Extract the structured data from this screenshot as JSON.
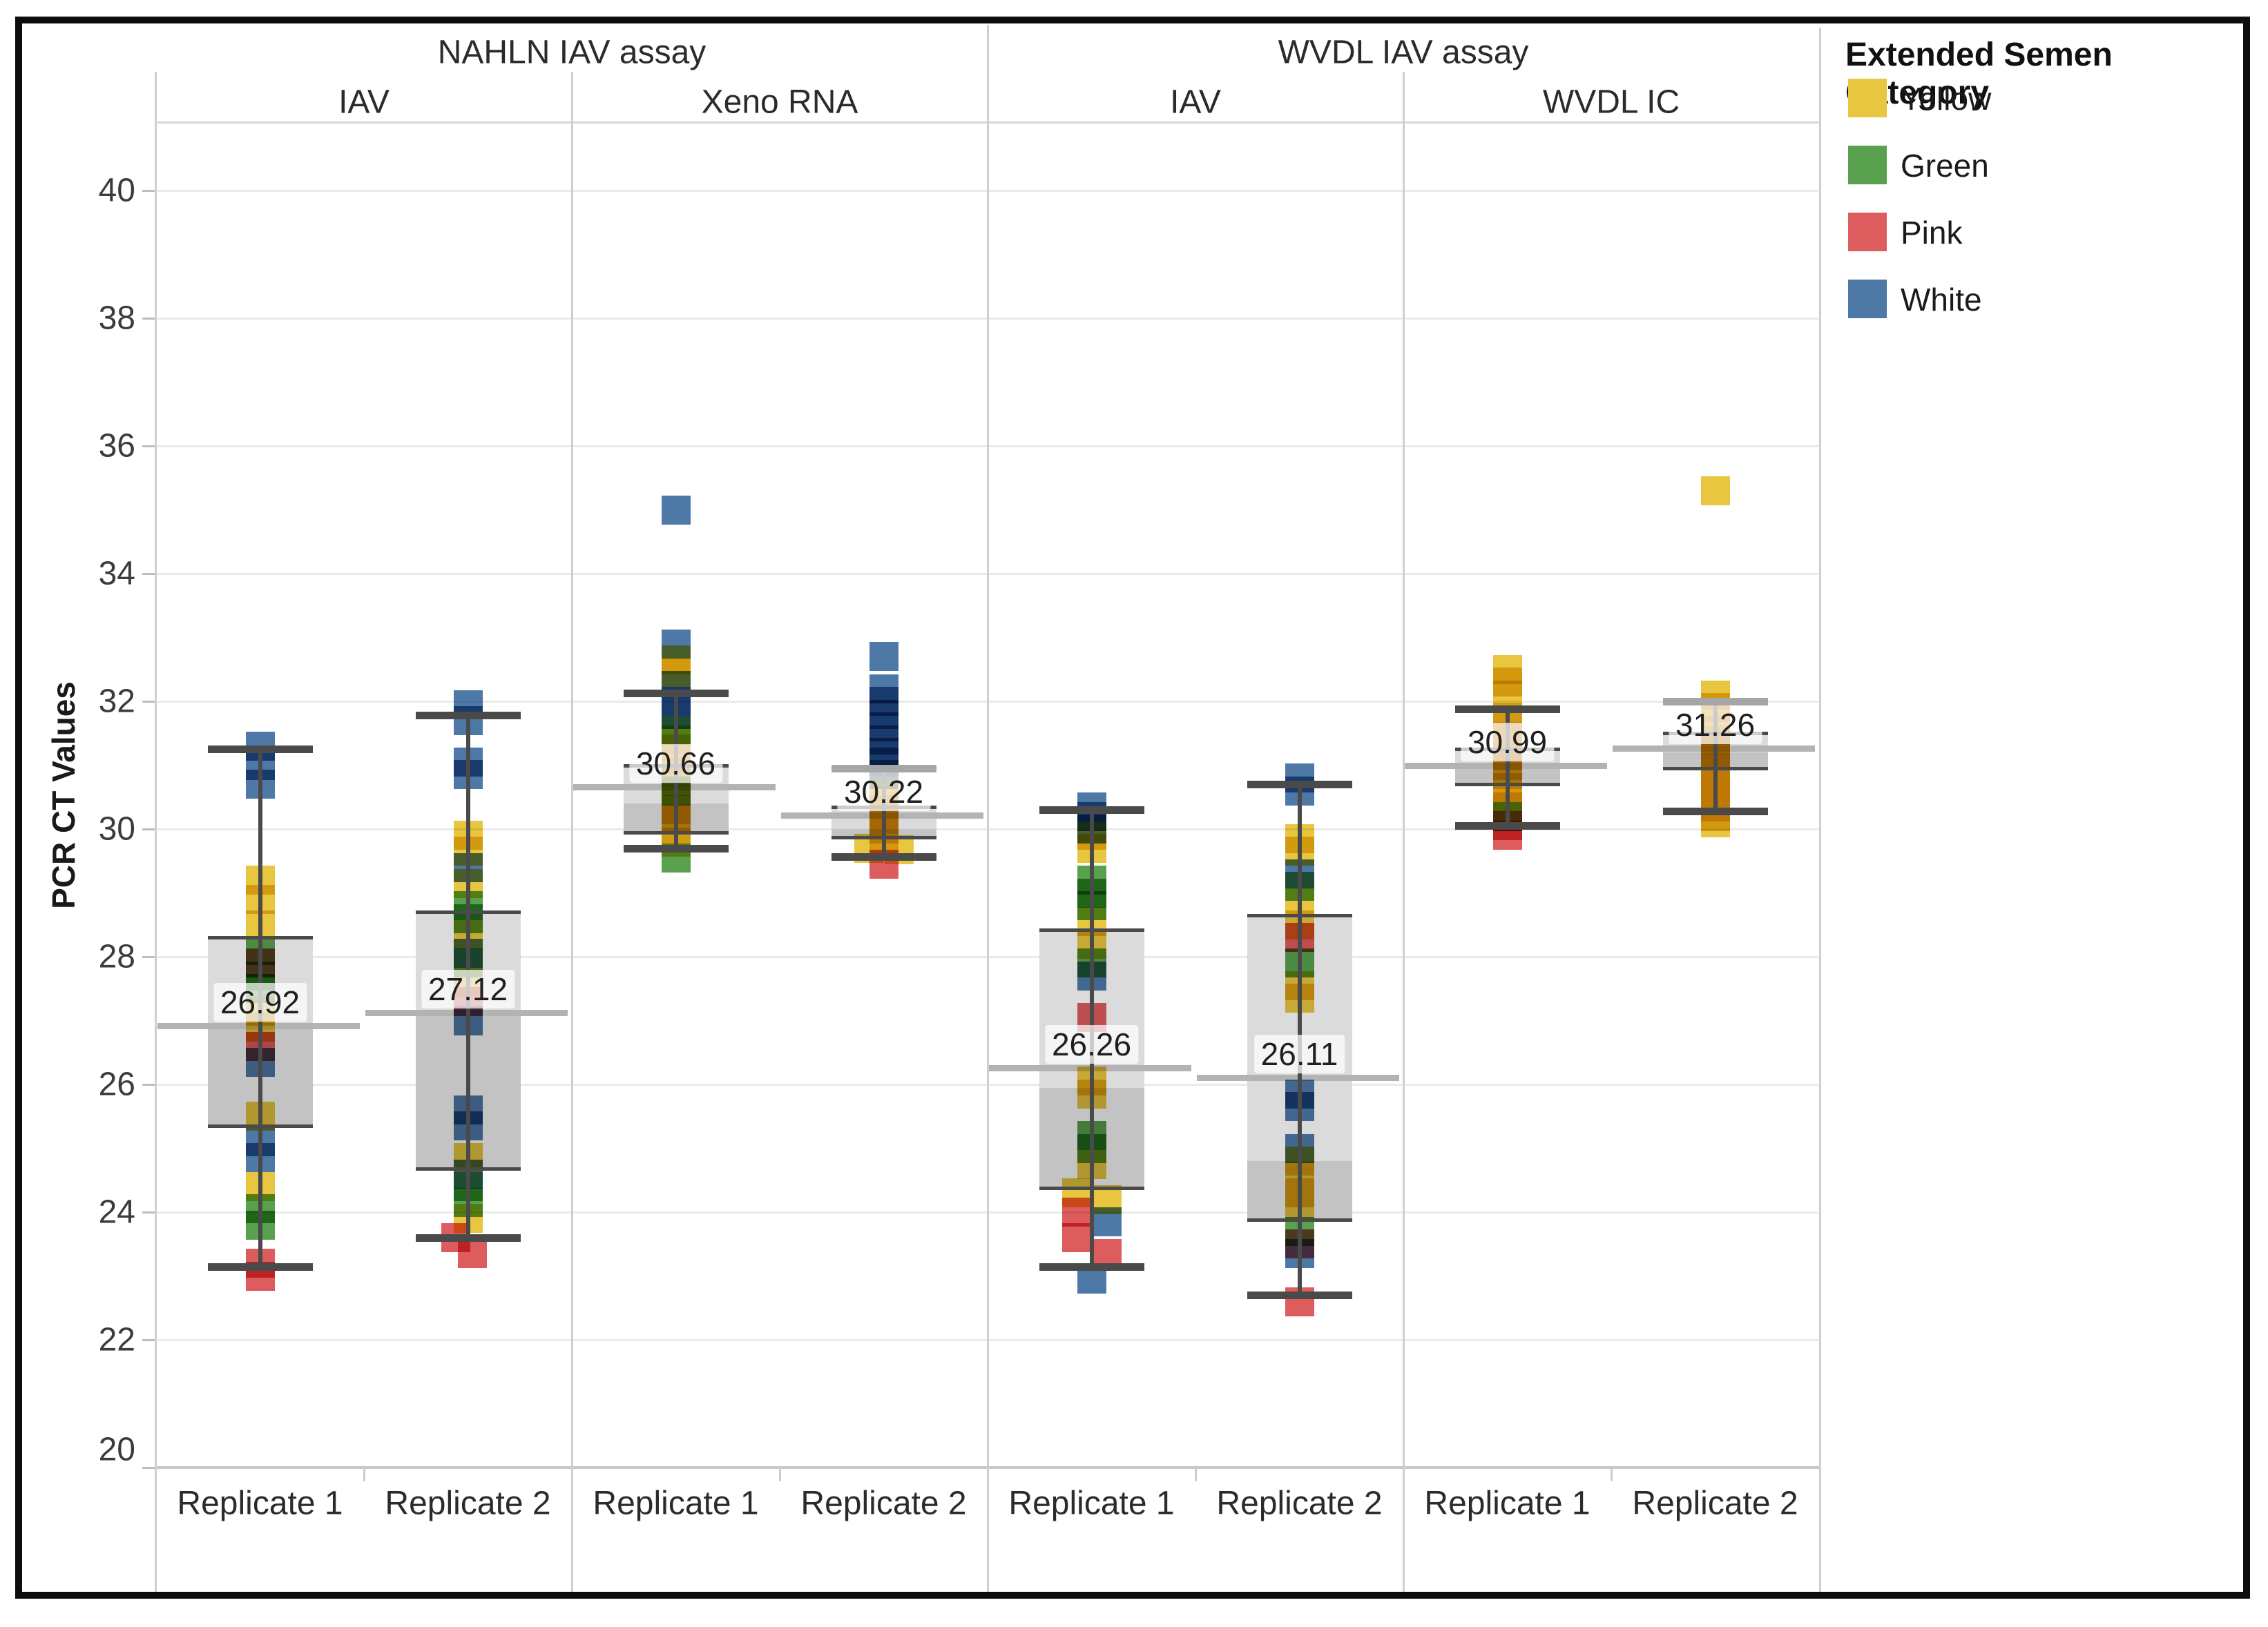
{
  "chart_data": {
    "type": "boxplot",
    "title": "",
    "ylabel": "PCR CT Values",
    "y_axis": {
      "min": 20,
      "max": 41,
      "tick_step": 2,
      "ticks": [
        20,
        22,
        24,
        26,
        28,
        30,
        32,
        34,
        36,
        38,
        40
      ]
    },
    "grid": "horizontal-light",
    "legend_position": "top-right",
    "legend": {
      "title": "Extended Semen Category",
      "items": [
        {
          "label": "Yellow",
          "color": "#E8C63F"
        },
        {
          "label": "Green",
          "color": "#59A14F"
        },
        {
          "label": "Pink",
          "color": "#DD5C5E"
        },
        {
          "label": "White",
          "color": "#4E79A7"
        }
      ]
    },
    "category_key": {
      "Y": "Yellow",
      "G": "Green",
      "P": "Pink",
      "W": "White"
    },
    "colors": {
      "Yellow": "#E8C63F",
      "Green": "#59A14F",
      "Pink": "#DD5C5E",
      "White": "#4E79A7",
      "box_light": "#DBDBDB",
      "box_dark": "#C3C3C3",
      "box_edge": "#4A4A4A",
      "whisker": "#4A4A4A",
      "whisker_light": "#A6A6A6",
      "mean_line": "#B3B3B3",
      "gridline": "#EAEAEA",
      "divider": "#CFCFCF",
      "frame": "#0D0D0D"
    },
    "assay_groups": [
      {
        "label": "NAHLN IAV assay",
        "panes": [
          0,
          1
        ]
      },
      {
        "label": "WVDL IAV assay",
        "panes": [
          2,
          3
        ]
      }
    ],
    "panes": [
      {
        "label": "IAV",
        "replicates": [
          {
            "label": "Replicate 1",
            "mean": 26.92,
            "mean_label": "26.92",
            "whisker_high": 31.25,
            "q3": 28.3,
            "median": 26.9,
            "q1": 25.35,
            "whisker_low": 23.15,
            "points": [
              [
                "W",
                31.3
              ],
              [
                "W",
                31.0
              ],
              [
                "W",
                30.7
              ],
              [
                "Y",
                29.2
              ],
              [
                "Y",
                28.9
              ],
              [
                "Y",
                28.5
              ],
              [
                "G",
                28.1
              ],
              [
                "P",
                27.9
              ],
              [
                "G",
                27.7
              ],
              [
                "G",
                27.5
              ],
              [
                "Y",
                27.15
              ],
              [
                "Y",
                26.9
              ],
              [
                "P",
                26.6
              ],
              [
                "W",
                26.35
              ],
              [
                "Y",
                25.5
              ],
              [
                "W",
                25.1
              ],
              [
                "W",
                24.85
              ],
              [
                "Y",
                24.4
              ],
              [
                "G",
                24.05
              ],
              [
                "G",
                23.8
              ],
              [
                "P",
                23.2
              ],
              [
                "P",
                23.0
              ]
            ]
          },
          {
            "label": "Replicate 2",
            "mean": 27.12,
            "mean_label": "27.12",
            "whisker_high": 31.78,
            "q3": 28.7,
            "median": 27.1,
            "q1": 24.68,
            "whisker_low": 23.6,
            "points": [
              [
                "W",
                31.95
              ],
              [
                "W",
                31.7
              ],
              [
                "W",
                31.05
              ],
              [
                "W",
                30.85
              ],
              [
                "Y",
                29.9
              ],
              [
                "Y",
                29.65
              ],
              [
                "W",
                29.4
              ],
              [
                "Y",
                29.15
              ],
              [
                "G",
                28.8
              ],
              [
                "G",
                28.6
              ],
              [
                "Y",
                28.35
              ],
              [
                "W",
                28.05
              ],
              [
                "G",
                27.9
              ],
              [
                "Y",
                27.6
              ],
              [
                "P",
                27.3
              ],
              [
                "W",
                27.0
              ],
              [
                "W",
                25.6
              ],
              [
                "W",
                25.35
              ],
              [
                "Y",
                24.85
              ],
              [
                "W",
                24.6
              ],
              [
                "G",
                24.4
              ],
              [
                "G",
                24.15
              ],
              [
                "Y",
                23.9
              ],
              [
                "P",
                23.6,
                -18
              ],
              [
                "P",
                23.35,
                6
              ]
            ]
          }
        ]
      },
      {
        "label": "Xeno RNA",
        "replicates": [
          {
            "label": "Replicate 1",
            "mean": 30.66,
            "mean_label": "30.66",
            "whisker_high": 32.13,
            "q3": 31.0,
            "median": 30.4,
            "q1": 29.95,
            "whisker_low": 29.7,
            "points": [
              [
                "W",
                35.0
              ],
              [
                "W",
                32.9
              ],
              [
                "Y",
                32.65
              ],
              [
                "Y",
                32.45
              ],
              [
                "W",
                32.25
              ],
              [
                "W",
                32.0
              ],
              [
                "W",
                31.8
              ],
              [
                "G",
                31.55
              ],
              [
                "Y",
                31.4
              ],
              [
                "Y",
                31.25
              ],
              [
                "Y",
                31.1
              ],
              [
                "Y",
                30.9
              ],
              [
                "Y",
                30.75
              ],
              [
                "G",
                30.6
              ],
              [
                "Y",
                30.45
              ],
              [
                "Y",
                30.3
              ],
              [
                "Y",
                30.15
              ],
              [
                "Y",
                30.0
              ],
              [
                "Y",
                29.8
              ],
              [
                "G",
                29.55
              ]
            ]
          },
          {
            "label": "Replicate 2",
            "mean": 30.22,
            "mean_label": "30.22",
            "whisker_high": 30.95,
            "q3": 30.35,
            "median": 30.0,
            "q1": 29.87,
            "whisker_low": 29.57,
            "cap_top_light": true,
            "points": [
              [
                "W",
                32.7
              ],
              [
                "W",
                32.2
              ],
              [
                "W",
                32.0
              ],
              [
                "W",
                31.8
              ],
              [
                "W",
                31.6
              ],
              [
                "W",
                31.4
              ],
              [
                "W",
                31.2
              ],
              [
                "W",
                31.05
              ],
              [
                "W",
                30.85
              ],
              [
                "Y",
                30.6
              ],
              [
                "Y",
                30.45
              ],
              [
                "Y",
                30.3
              ],
              [
                "Y",
                30.15
              ],
              [
                "Y",
                30.0
              ],
              [
                "Y",
                29.85
              ],
              [
                "Y",
                29.7,
                -22
              ],
              [
                "Y",
                29.68,
                22
              ],
              [
                "P",
                29.45
              ]
            ]
          }
        ]
      },
      {
        "label": "IAV",
        "replicates": [
          {
            "label": "Replicate 1",
            "mean": 26.26,
            "mean_label": "26.26",
            "whisker_high": 30.3,
            "q3": 28.42,
            "median": 25.95,
            "q1": 24.38,
            "whisker_low": 23.15,
            "points": [
              [
                "W",
                30.35
              ],
              [
                "W",
                30.2
              ],
              [
                "W",
                30.0
              ],
              [
                "Y",
                29.9
              ],
              [
                "Y",
                29.7
              ],
              [
                "G",
                29.2
              ],
              [
                "G",
                29.0
              ],
              [
                "G",
                28.8
              ],
              [
                "Y",
                28.55
              ],
              [
                "Y",
                28.2
              ],
              [
                "G",
                27.9
              ],
              [
                "W",
                27.7
              ],
              [
                "P",
                27.05
              ],
              [
                "Y",
                26.05
              ],
              [
                "Y",
                25.85
              ],
              [
                "G",
                25.2
              ],
              [
                "G",
                25.0
              ],
              [
                "Y",
                24.75
              ],
              [
                "Y",
                24.3,
                -22
              ],
              [
                "Y",
                24.2,
                22
              ],
              [
                "P",
                24.0,
                -22
              ],
              [
                "W",
                23.85,
                22
              ],
              [
                "P",
                23.6,
                -22
              ],
              [
                "P",
                23.35,
                22
              ],
              [
                "W",
                22.95
              ]
            ]
          },
          {
            "label": "Replicate 2",
            "mean": 26.11,
            "mean_label": "26.11",
            "whisker_high": 30.7,
            "q3": 28.65,
            "median": 24.8,
            "q1": 23.88,
            "whisker_low": 22.7,
            "points": [
              [
                "W",
                30.8
              ],
              [
                "W",
                30.6
              ],
              [
                "Y",
                29.85
              ],
              [
                "Y",
                29.65
              ],
              [
                "W",
                29.3
              ],
              [
                "G",
                29.1
              ],
              [
                "Y",
                28.85
              ],
              [
                "Y",
                28.5
              ],
              [
                "P",
                28.3
              ],
              [
                "G",
                27.9
              ],
              [
                "Y",
                27.55
              ],
              [
                "Y",
                27.35
              ],
              [
                "W",
                25.85
              ],
              [
                "W",
                25.65
              ],
              [
                "W",
                25.0
              ],
              [
                "Y",
                24.8
              ],
              [
                "Y",
                24.55
              ],
              [
                "Y",
                24.3
              ],
              [
                "Y",
                24.1
              ],
              [
                "G",
                23.7
              ],
              [
                "P",
                23.5
              ],
              [
                "W",
                23.35
              ],
              [
                "P",
                22.6
              ]
            ]
          }
        ]
      },
      {
        "label": "WVDL IC",
        "replicates": [
          {
            "label": "Replicate 1",
            "mean": 30.99,
            "mean_label": "30.99",
            "whisker_high": 31.88,
            "q3": 31.25,
            "median": 31.0,
            "q1": 30.7,
            "whisker_low": 30.05,
            "points": [
              [
                "Y",
                32.5
              ],
              [
                "Y",
                32.3
              ],
              [
                "Y",
                32.1
              ],
              [
                "Y",
                31.75
              ],
              [
                "Y",
                31.6
              ],
              [
                "Y",
                31.45
              ],
              [
                "Y",
                31.3
              ],
              [
                "Y",
                31.15
              ],
              [
                "Y",
                31.0
              ],
              [
                "Y",
                30.85
              ],
              [
                "Y",
                30.65
              ],
              [
                "Y",
                30.5
              ],
              [
                "Y",
                30.35
              ],
              [
                "G",
                30.2
              ],
              [
                "P",
                30.05
              ],
              [
                "P",
                29.9
              ]
            ]
          },
          {
            "label": "Replicate 2",
            "mean": 31.26,
            "mean_label": "31.26",
            "whisker_high": 32.0,
            "q3": 31.5,
            "median": 31.2,
            "q1": 30.95,
            "whisker_low": 30.28,
            "cap_top_light": true,
            "points": [
              [
                "Y",
                35.3
              ],
              [
                "Y",
                32.1
              ],
              [
                "Y",
                31.9
              ],
              [
                "Y",
                31.7
              ],
              [
                "Y",
                31.55
              ],
              [
                "Y",
                31.4
              ],
              [
                "Y",
                31.25
              ],
              [
                "Y",
                31.1
              ],
              [
                "Y",
                30.95
              ],
              [
                "Y",
                30.8
              ],
              [
                "Y",
                30.65
              ],
              [
                "Y",
                30.5
              ],
              [
                "Y",
                30.35
              ],
              [
                "Y",
                30.2
              ],
              [
                "Y",
                30.1
              ]
            ]
          }
        ]
      }
    ],
    "x_axis": {
      "replicate_labels": [
        "Replicate 1",
        "Replicate 2"
      ]
    }
  }
}
